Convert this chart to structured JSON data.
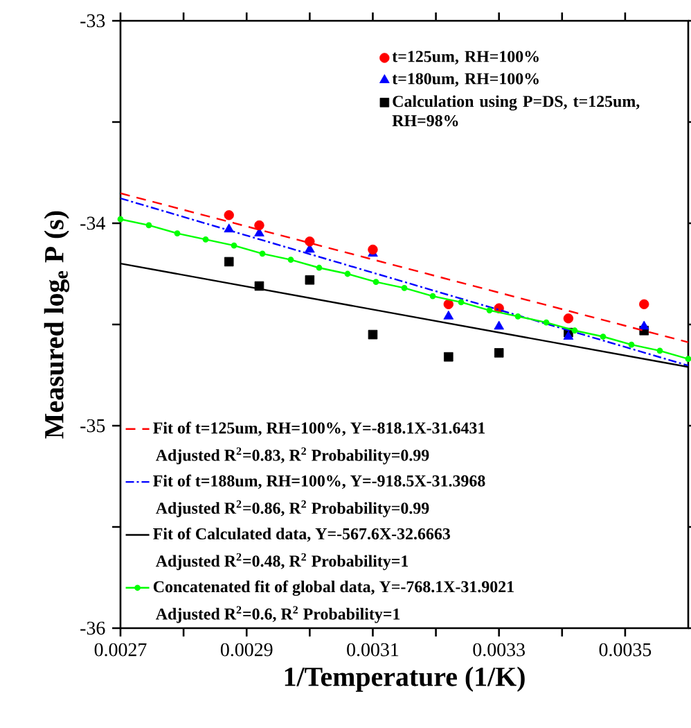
{
  "chart_data": {
    "type": "scatter",
    "xlabel": "1/Temperature (1/K)",
    "ylabel": "Measured log$_{e}$ P (s)",
    "xlim": [
      0.0027,
      0.0036
    ],
    "ylim": [
      -36,
      -33
    ],
    "xticks": [
      0.0027,
      {
        "value": 0.0028,
        "label": null
      },
      0.0029,
      {
        "value": 0.003,
        "label": null
      },
      0.0031,
      {
        "value": 0.0032,
        "label": null
      },
      0.0033,
      {
        "value": 0.0034,
        "label": null
      },
      0.0035
    ],
    "yticks": [
      -36,
      {
        "value": -35.5,
        "label": null
      },
      -35,
      {
        "value": -34.5,
        "label": null
      },
      -34,
      {
        "value": -33.5,
        "label": null
      },
      -33
    ],
    "legend": "top right",
    "grid": false,
    "series": [
      {
        "name": "t=125um, RH=100%",
        "marker": "circle",
        "color": "#ff0000",
        "x": [
          0.002872,
          0.00292,
          0.003,
          0.0031,
          0.00322,
          0.0033,
          0.00341,
          0.00353
        ],
        "values": [
          -33.96,
          -34.01,
          -34.09,
          -34.13,
          -34.4,
          -34.42,
          -34.47,
          -34.4
        ]
      },
      {
        "name": "t=180um, RH=100%",
        "marker": "triangle",
        "color": "#0000ff",
        "x": [
          0.002872,
          0.00292,
          0.003,
          0.0031,
          0.00322,
          0.0033,
          0.00341,
          0.00353
        ],
        "values": [
          -34.03,
          -34.05,
          -34.13,
          -34.15,
          -34.46,
          -34.51,
          -34.56,
          -34.51
        ]
      },
      {
        "name": "Calculation using P=DS, t=125um, RH=98%",
        "marker": "square",
        "color": "#000000",
        "x": [
          0.002872,
          0.00292,
          0.003,
          0.0031,
          0.00322,
          0.0033,
          0.00341,
          0.00353
        ],
        "values": [
          -34.19,
          -34.31,
          -34.28,
          -34.55,
          -34.66,
          -34.64,
          -34.54,
          -34.53
        ]
      },
      {
        "name": "Fit of t=125um, RH=100%, Y=-818.1X-31.6431",
        "type": "line",
        "marker": "none",
        "line_style": "dashed",
        "color": "#ff0000",
        "x": [
          0.0027,
          0.0036
        ],
        "values": [
          -33.852,
          -34.588
        ]
      },
      {
        "name": "Fit of t=188um, RH=100%, Y=-918.5X-31.3968",
        "type": "line",
        "marker": "none",
        "line_style": "dashdot",
        "color": "#0000ff",
        "x": [
          0.0027,
          0.0036
        ],
        "values": [
          -33.877,
          -34.703
        ]
      },
      {
        "name": "Fit of Calculated data, Y=-567.6X-32.6663",
        "type": "line",
        "marker": "none",
        "line_style": "solid",
        "color": "#000000",
        "x": [
          0.0027,
          0.0036
        ],
        "values": [
          -34.199,
          -34.71
        ]
      },
      {
        "name": "Concatenated fit of global data, Y=-768.1X-31.9021",
        "type": "line",
        "marker": "circle",
        "line_style": "solid",
        "color": "#00ff00",
        "x": [
          0.0027,
          0.002745,
          0.00279,
          0.002835,
          0.00288,
          0.002925,
          0.00297,
          0.003015,
          0.00306,
          0.003105,
          0.00315,
          0.003195,
          0.00324,
          0.003285,
          0.00333,
          0.003375,
          0.00342,
          0.003465,
          0.00351,
          0.003555,
          0.0036
        ],
        "values": [
          -33.98,
          -34.01,
          -34.05,
          -34.08,
          -34.11,
          -34.15,
          -34.18,
          -34.22,
          -34.25,
          -34.29,
          -34.32,
          -34.36,
          -34.39,
          -34.43,
          -34.46,
          -34.49,
          -34.53,
          -34.56,
          -34.6,
          -34.63,
          -34.67
        ]
      }
    ],
    "annotations": [
      "Adjusted R$^{2}$=0.83, R$^{2}$ Probability=0.99",
      "Adjusted R$^{2}$=0.86, R$^{2}$ Probability=0.99",
      "Adjusted R$^{2}$=0.48, R$^{2}$ Probability=1",
      "Adjusted R$^{2}$=0.6, R$^{2}$ Probability=1"
    ]
  }
}
